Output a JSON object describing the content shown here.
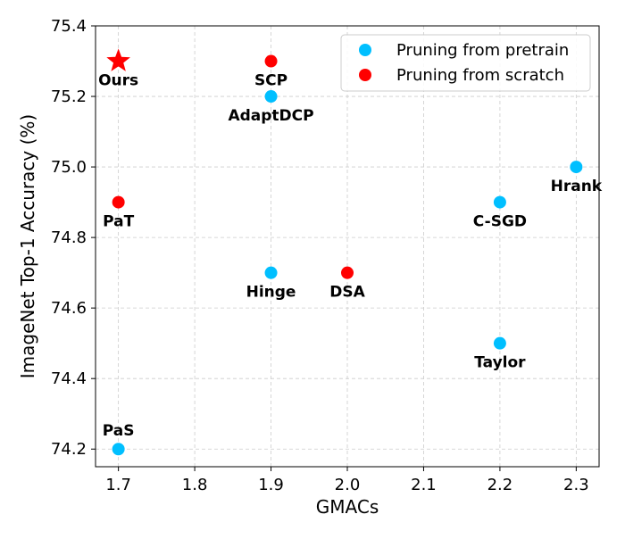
{
  "chart_data": {
    "type": "scatter",
    "xlabel": "GMACs",
    "ylabel": "ImageNet Top-1 Accuracy (%)",
    "xlim": [
      1.67,
      2.33
    ],
    "ylim": [
      74.15,
      75.4
    ],
    "x_ticks": [
      "1.7",
      "1.8",
      "1.9",
      "2.0",
      "2.1",
      "2.2",
      "2.3"
    ],
    "y_ticks": [
      "74.2",
      "74.4",
      "74.6",
      "74.8",
      "75.0",
      "75.2",
      "75.4"
    ],
    "grid": true,
    "legend_position": "top-right",
    "colors": {
      "pretrain": "#00bfff",
      "scratch": "#ff0000"
    },
    "series": [
      {
        "name": "Pruning from pretrain",
        "color_key": "pretrain",
        "marker": "circle",
        "points": [
          {
            "label": "AdaptDCP",
            "x": 1.9,
            "y": 75.2
          },
          {
            "label": "Hrank",
            "x": 2.3,
            "y": 75.0
          },
          {
            "label": "C-SGD",
            "x": 2.2,
            "y": 74.9
          },
          {
            "label": "Hinge",
            "x": 1.9,
            "y": 74.7
          },
          {
            "label": "Taylor",
            "x": 2.2,
            "y": 74.5
          },
          {
            "label": "PaS",
            "x": 1.7,
            "y": 74.2
          }
        ]
      },
      {
        "name": "Pruning from scratch",
        "color_key": "scratch",
        "marker": "circle",
        "points": [
          {
            "label": "SCP",
            "x": 1.9,
            "y": 75.3
          },
          {
            "label": "PaT",
            "x": 1.7,
            "y": 74.9
          },
          {
            "label": "DSA",
            "x": 2.0,
            "y": 74.7
          }
        ]
      }
    ],
    "highlight": {
      "label": "Ours",
      "x": 1.7,
      "y": 75.3,
      "marker": "star",
      "color_key": "scratch"
    }
  }
}
